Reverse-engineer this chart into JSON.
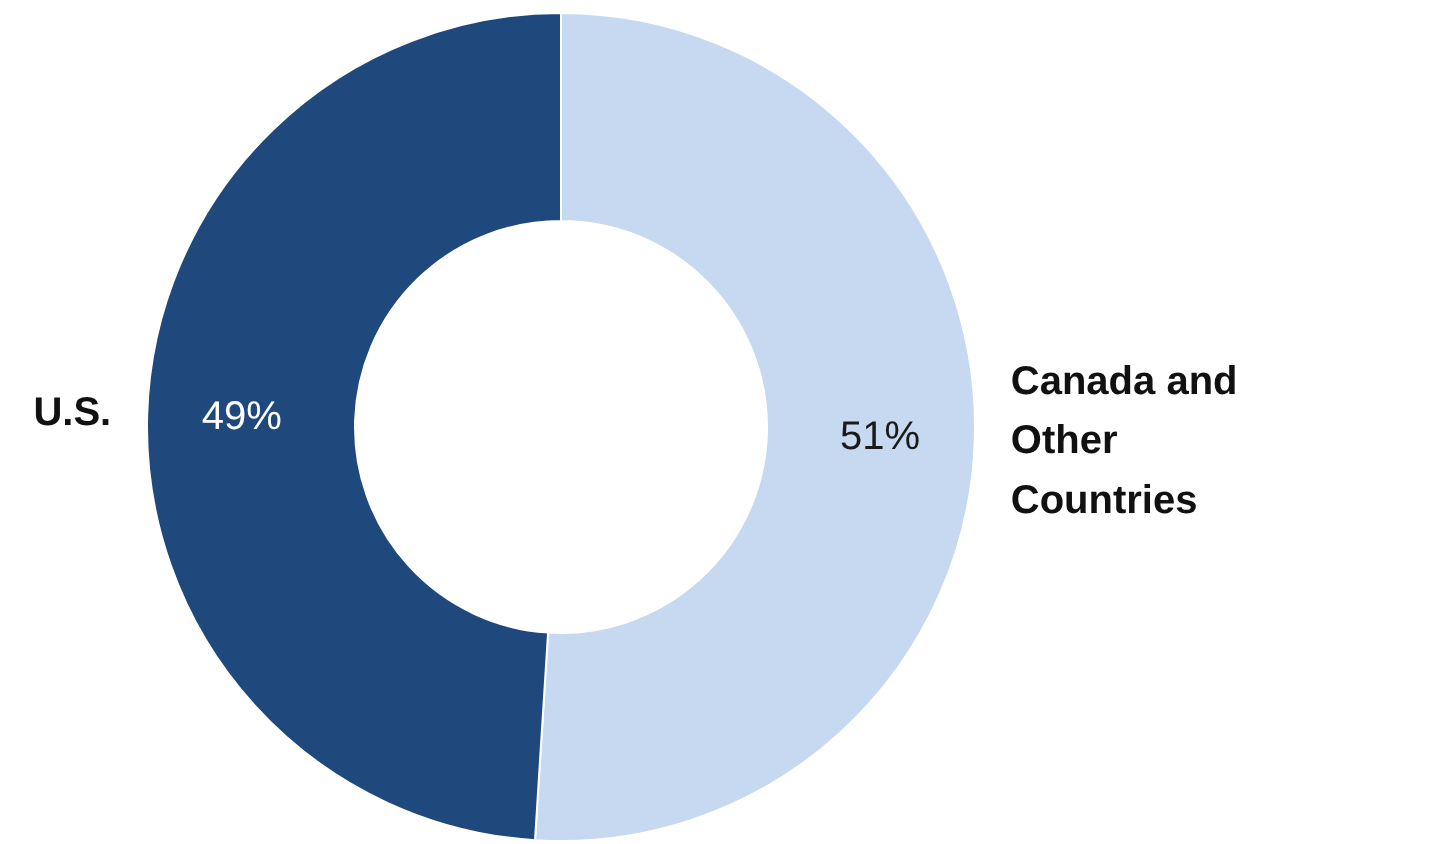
{
  "chart_data": {
    "type": "donut",
    "categories": [
      "Canada and Other Countries",
      "U.S."
    ],
    "values": [
      51,
      49
    ],
    "colors": [
      "#c6d9f0",
      "#1f497d"
    ],
    "value_labels": [
      "51%",
      "49%"
    ]
  }
}
